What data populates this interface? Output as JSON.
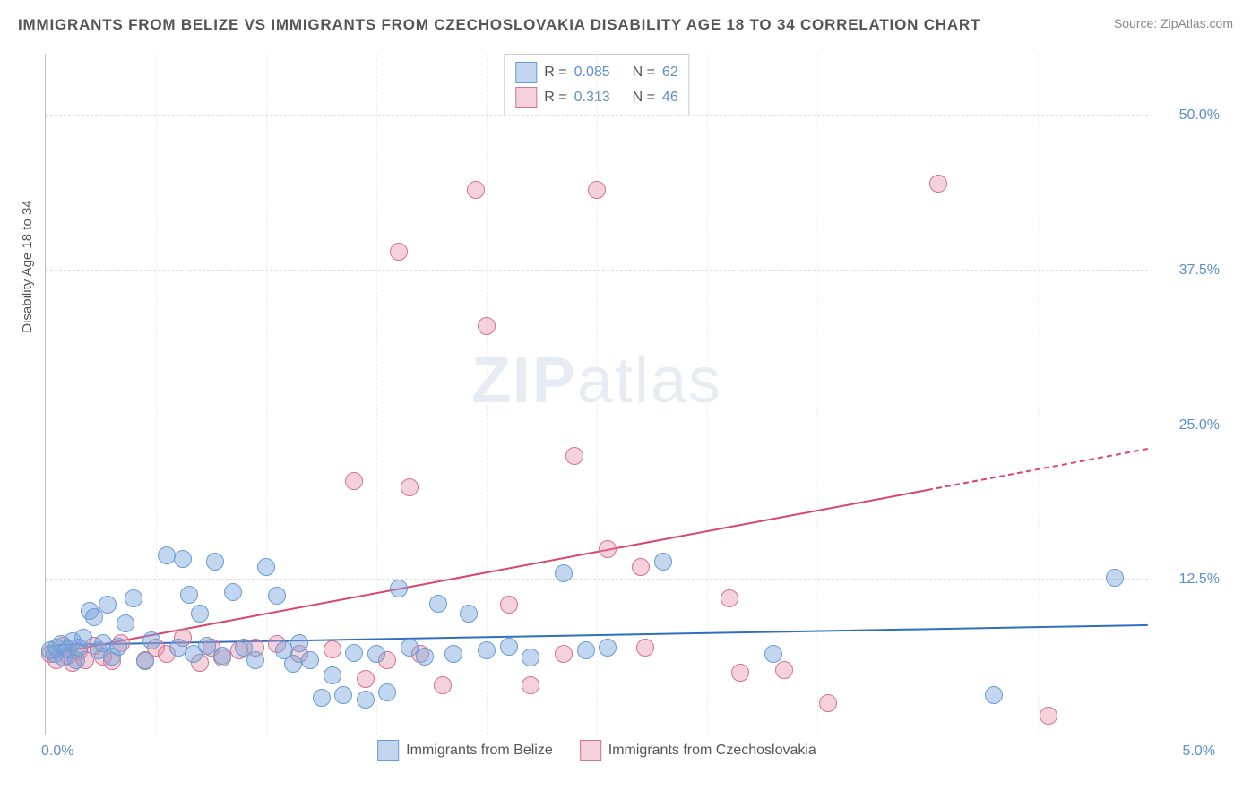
{
  "title": "IMMIGRANTS FROM BELIZE VS IMMIGRANTS FROM CZECHOSLOVAKIA DISABILITY AGE 18 TO 34 CORRELATION CHART",
  "source": "Source: ZipAtlas.com",
  "watermark": {
    "zip": "ZIP",
    "atlas": "atlas"
  },
  "y_axis_title": "Disability Age 18 to 34",
  "chart": {
    "type": "scatter",
    "xlim": [
      0,
      5.0
    ],
    "ylim": [
      0,
      55.0
    ],
    "x_tick_labels": {
      "left": "0.0%",
      "right": "5.0%"
    },
    "y_ticks": [
      12.5,
      25.0,
      37.5,
      50.0
    ],
    "y_tick_labels": [
      "12.5%",
      "25.0%",
      "37.5%",
      "50.0%"
    ],
    "x_gridlines": [
      0.5,
      1.0,
      1.5,
      2.0,
      2.5,
      3.0,
      3.5,
      4.0,
      4.5
    ],
    "background_color": "#ffffff",
    "grid_color": "#dddddd",
    "axis_color": "#bbbbbb",
    "point_radius": 9,
    "series": [
      {
        "id": "belize",
        "label": "Immigrants from Belize",
        "fill": "rgba(120,165,220,0.45)",
        "stroke": "#6a9cd4",
        "R_label": "R =",
        "R": "0.085",
        "N_label": "N =",
        "N": "62",
        "regression": {
          "color": "#2f6fc0",
          "x1": 0.05,
          "y1": 7.2,
          "x2": 5.0,
          "y2": 8.8,
          "dash_from_x": null
        },
        "points": [
          [
            0.02,
            6.8
          ],
          [
            0.04,
            6.5
          ],
          [
            0.05,
            7.0
          ],
          [
            0.07,
            7.3
          ],
          [
            0.08,
            6.2
          ],
          [
            0.1,
            6.9
          ],
          [
            0.12,
            7.5
          ],
          [
            0.14,
            6.0
          ],
          [
            0.15,
            7.0
          ],
          [
            0.17,
            7.8
          ],
          [
            0.2,
            10.0
          ],
          [
            0.22,
            9.5
          ],
          [
            0.24,
            6.8
          ],
          [
            0.26,
            7.4
          ],
          [
            0.28,
            10.5
          ],
          [
            0.3,
            6.3
          ],
          [
            0.33,
            7.1
          ],
          [
            0.36,
            9.0
          ],
          [
            0.4,
            11.0
          ],
          [
            0.45,
            5.9
          ],
          [
            0.48,
            7.6
          ],
          [
            0.55,
            14.5
          ],
          [
            0.6,
            7.0
          ],
          [
            0.62,
            14.2
          ],
          [
            0.65,
            11.3
          ],
          [
            0.67,
            6.5
          ],
          [
            0.7,
            9.8
          ],
          [
            0.73,
            7.2
          ],
          [
            0.77,
            14.0
          ],
          [
            0.8,
            6.4
          ],
          [
            0.85,
            11.5
          ],
          [
            0.9,
            7.0
          ],
          [
            0.95,
            6.0
          ],
          [
            1.0,
            13.5
          ],
          [
            1.05,
            11.2
          ],
          [
            1.08,
            6.8
          ],
          [
            1.12,
            5.7
          ],
          [
            1.15,
            7.4
          ],
          [
            1.2,
            6.0
          ],
          [
            1.25,
            3.0
          ],
          [
            1.3,
            4.8
          ],
          [
            1.35,
            3.2
          ],
          [
            1.4,
            6.6
          ],
          [
            1.45,
            2.8
          ],
          [
            1.5,
            6.5
          ],
          [
            1.55,
            3.4
          ],
          [
            1.6,
            11.8
          ],
          [
            1.65,
            7.0
          ],
          [
            1.72,
            6.3
          ],
          [
            1.78,
            10.6
          ],
          [
            1.85,
            6.5
          ],
          [
            1.92,
            9.8
          ],
          [
            2.0,
            6.8
          ],
          [
            2.1,
            7.1
          ],
          [
            2.2,
            6.2
          ],
          [
            2.35,
            13.0
          ],
          [
            2.45,
            6.8
          ],
          [
            2.55,
            7.0
          ],
          [
            2.8,
            14.0
          ],
          [
            3.3,
            6.5
          ],
          [
            4.3,
            3.2
          ],
          [
            4.85,
            12.7
          ]
        ]
      },
      {
        "id": "czech",
        "label": "Immigrants from Czechoslovakia",
        "fill": "rgba(230,140,165,0.40)",
        "stroke": "#d4728f",
        "R_label": "R =",
        "R": "0.313",
        "N_label": "N =",
        "N": "46",
        "regression": {
          "color": "#d9456d",
          "x1": 0.05,
          "y1": 6.5,
          "x2": 5.0,
          "y2": 23.0,
          "dash_from_x": 4.0
        },
        "points": [
          [
            0.02,
            6.5
          ],
          [
            0.05,
            6.0
          ],
          [
            0.08,
            7.2
          ],
          [
            0.1,
            6.4
          ],
          [
            0.12,
            5.8
          ],
          [
            0.15,
            6.7
          ],
          [
            0.18,
            6.0
          ],
          [
            0.22,
            7.2
          ],
          [
            0.26,
            6.3
          ],
          [
            0.3,
            5.9
          ],
          [
            0.34,
            7.4
          ],
          [
            0.45,
            6.0
          ],
          [
            0.5,
            7.0
          ],
          [
            0.55,
            6.5
          ],
          [
            0.62,
            7.8
          ],
          [
            0.7,
            5.8
          ],
          [
            0.75,
            7.0
          ],
          [
            0.8,
            6.2
          ],
          [
            0.88,
            6.8
          ],
          [
            0.95,
            7.0
          ],
          [
            1.05,
            7.3
          ],
          [
            1.15,
            6.5
          ],
          [
            1.3,
            6.9
          ],
          [
            1.4,
            20.5
          ],
          [
            1.45,
            4.5
          ],
          [
            1.55,
            6.0
          ],
          [
            1.6,
            39.0
          ],
          [
            1.65,
            20.0
          ],
          [
            1.7,
            6.5
          ],
          [
            1.8,
            4.0
          ],
          [
            1.95,
            44.0
          ],
          [
            2.0,
            33.0
          ],
          [
            2.1,
            10.5
          ],
          [
            2.2,
            4.0
          ],
          [
            2.35,
            6.5
          ],
          [
            2.4,
            22.5
          ],
          [
            2.5,
            44.0
          ],
          [
            2.55,
            15.0
          ],
          [
            2.7,
            13.5
          ],
          [
            2.72,
            7.0
          ],
          [
            3.15,
            5.0
          ],
          [
            3.1,
            11.0
          ],
          [
            3.35,
            5.2
          ],
          [
            3.55,
            2.5
          ],
          [
            4.55,
            1.5
          ],
          [
            4.05,
            44.5
          ]
        ]
      }
    ]
  },
  "colors": {
    "text": "#555555",
    "tick": "#5b8ecb"
  }
}
